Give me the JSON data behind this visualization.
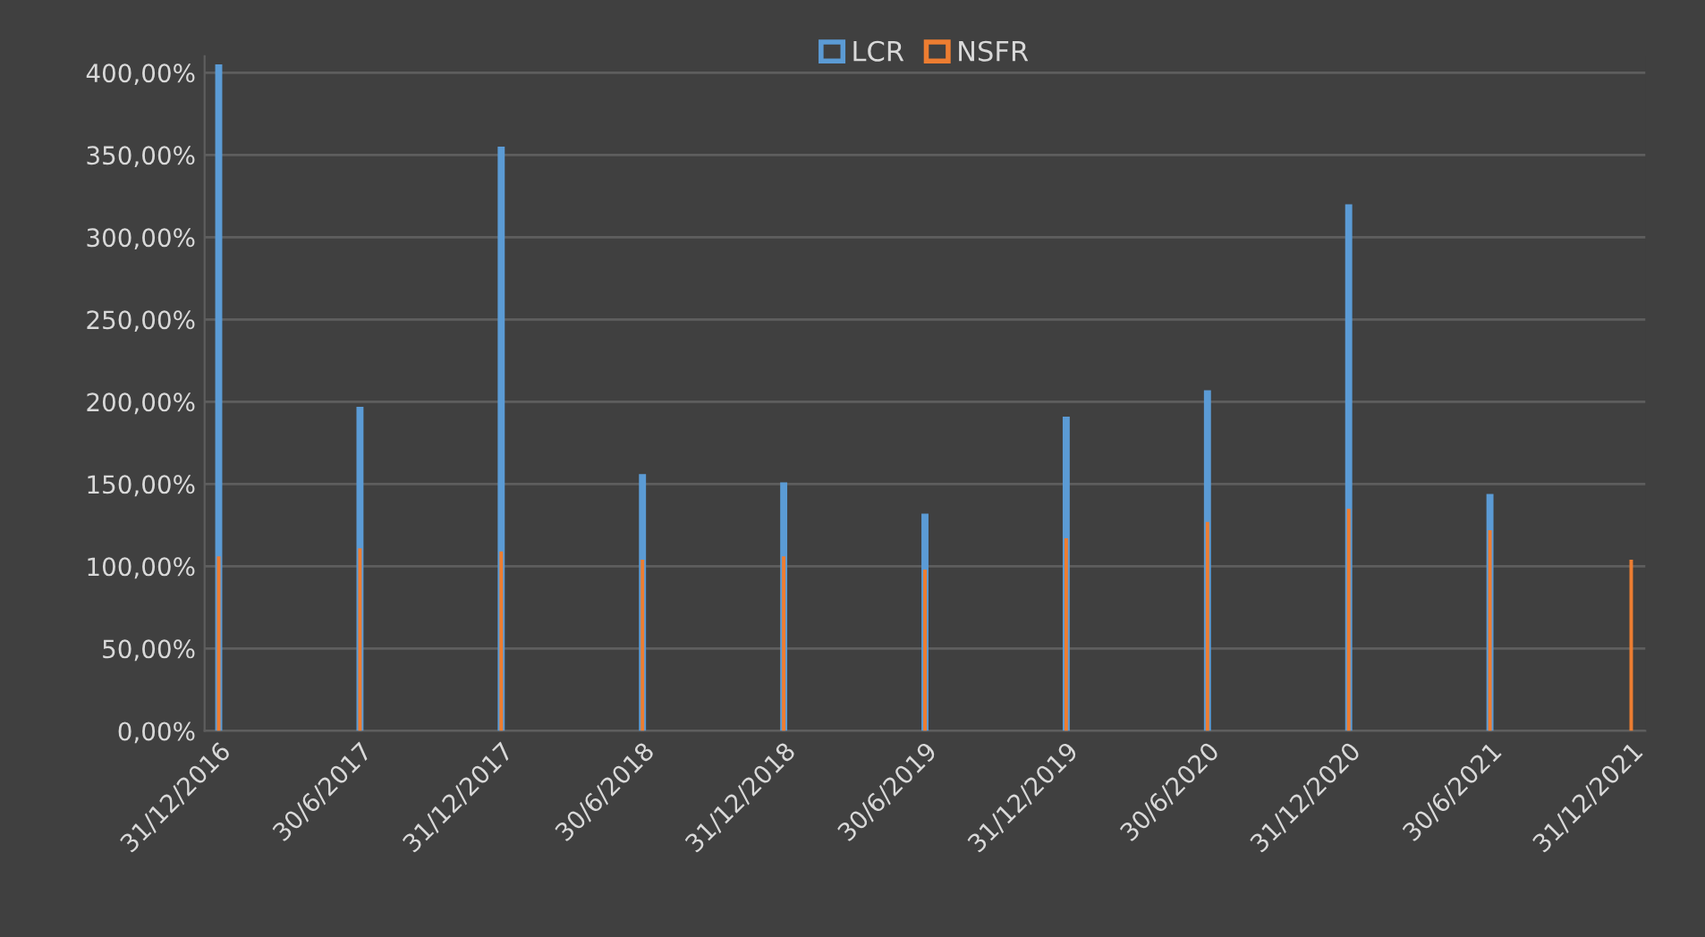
{
  "chart_data": {
    "type": "bar",
    "categories": [
      "31/12/2016",
      "30/6/2017",
      "31/12/2017",
      "30/6/2018",
      "31/12/2018",
      "30/6/2019",
      "31/12/2019",
      "30/6/2020",
      "31/12/2020",
      "30/6/2021",
      "31/12/2021"
    ],
    "series": [
      {
        "name": "LCR",
        "color": "#5b9bd5",
        "values": [
          405,
          197,
          355,
          156,
          151,
          132,
          191,
          207,
          320,
          144,
          null
        ]
      },
      {
        "name": "NSFR",
        "color": "#ed7d31",
        "values": [
          106,
          111,
          109,
          104,
          106,
          98,
          117,
          127,
          135,
          122,
          104
        ]
      }
    ],
    "ylim": [
      0,
      410
    ],
    "yticks": [
      {
        "value": 0,
        "label": "0,00%"
      },
      {
        "value": 50,
        "label": "50,00%"
      },
      {
        "value": 100,
        "label": "100,00%"
      },
      {
        "value": 150,
        "label": "150,00%"
      },
      {
        "value": 200,
        "label": "200,00%"
      },
      {
        "value": 250,
        "label": "250,00%"
      },
      {
        "value": 300,
        "label": "300,00%"
      },
      {
        "value": 350,
        "label": "350,00%"
      },
      {
        "value": 400,
        "label": "400,00%"
      }
    ],
    "grid": "y",
    "legend": "top"
  }
}
